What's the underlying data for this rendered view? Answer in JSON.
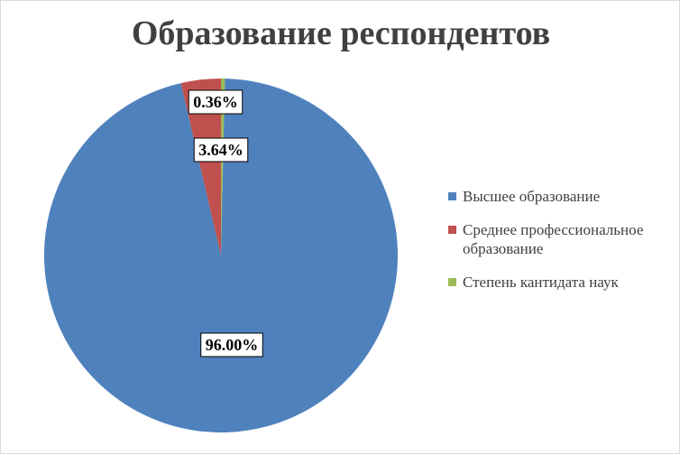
{
  "chart_data": {
    "type": "pie",
    "title": "Образование респондентов",
    "legend_position": "right",
    "slices": [
      {
        "label": "Высшее образование",
        "value": 96.0,
        "display": "96.00%",
        "color": "#4F81BD"
      },
      {
        "label": "Среднее профессиональное образование",
        "value": 3.64,
        "display": "3.64%",
        "color": "#C0504D"
      },
      {
        "label": "Степень кантидата наук",
        "value": 0.36,
        "display": "0.36%",
        "color": "#9BBB59"
      }
    ]
  }
}
